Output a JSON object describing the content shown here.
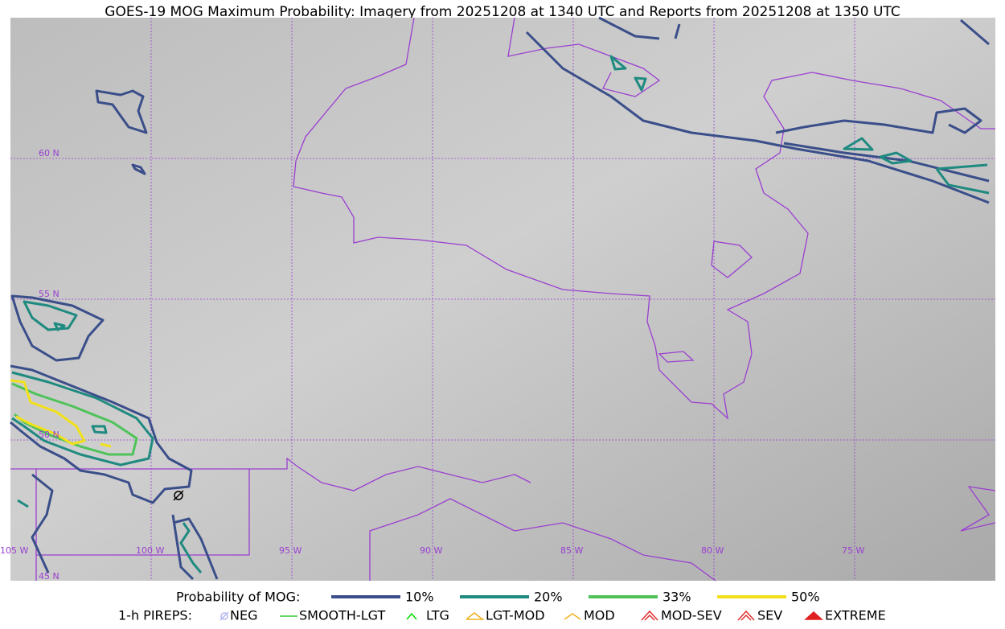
{
  "title": "GOES-19 MOG Maximum Probability: Imagery from 20251208 at 1340 UTC and Reports from 20251208 at 1350 UTC",
  "latitude_labels": [
    "60 N",
    "55 N",
    "50 N",
    "45 N"
  ],
  "longitude_labels": [
    "105 W",
    "100 W",
    "95 W",
    "90 W",
    "85 W",
    "80 W",
    "75 W"
  ],
  "probability_legend": {
    "title": "Probability of MOG:",
    "items": [
      {
        "label": "10%",
        "color": "#3a4e8a"
      },
      {
        "label": "20%",
        "color": "#1f8a80"
      },
      {
        "label": "33%",
        "color": "#4fc35a"
      },
      {
        "label": "50%",
        "color": "#f2e11a"
      }
    ]
  },
  "pirep_legend": {
    "title": "1-h PIREPS:",
    "items": [
      {
        "label": "NEG",
        "color": "#b4b4f0"
      },
      {
        "label": "SMOOTH-LGT",
        "color": "#33cc33"
      },
      {
        "label": "LTG",
        "color": "#00dd00"
      },
      {
        "label": "LGT-MOD",
        "color": "#f0b020"
      },
      {
        "label": "MOD",
        "color": "#f0b020"
      },
      {
        "label": "MOD-SEV",
        "color": "#e03030"
      },
      {
        "label": "SEV",
        "color": "#e03030"
      },
      {
        "label": "EXTREME",
        "color": "#e02020"
      }
    ]
  }
}
